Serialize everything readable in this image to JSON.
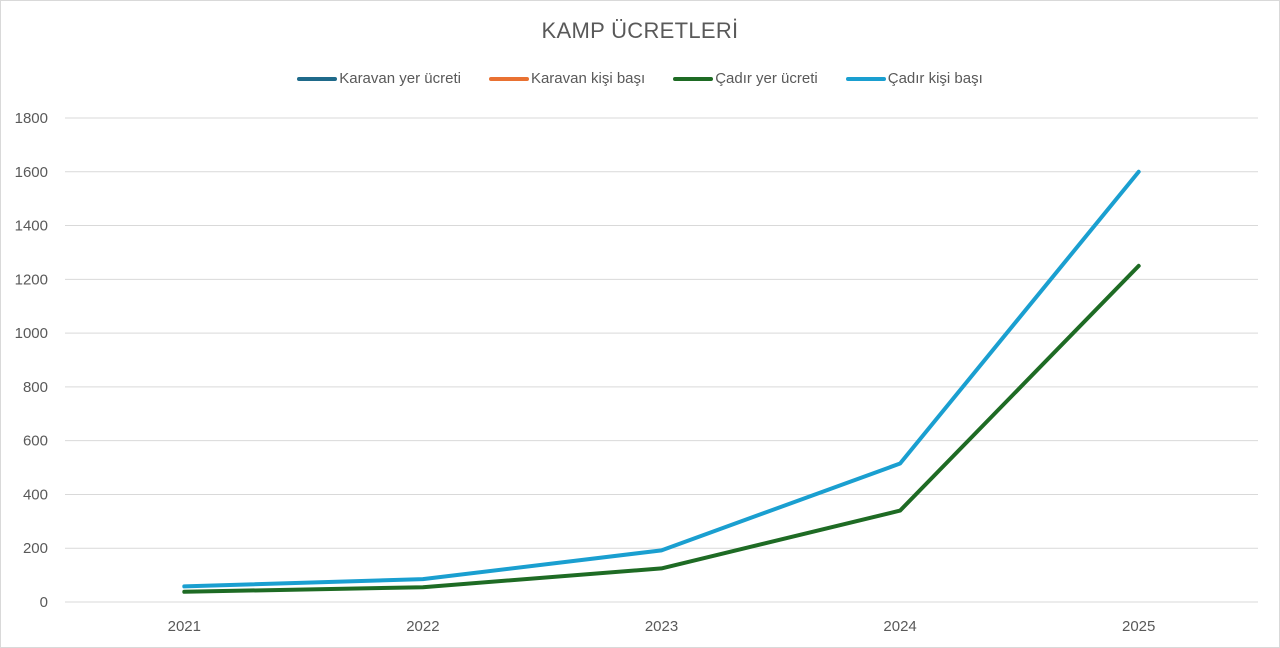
{
  "chart_data": {
    "type": "line",
    "title": "KAMP ÜCRETLERİ",
    "xlabel": "",
    "ylabel": "",
    "categories": [
      "2021",
      "2022",
      "2023",
      "2024",
      "2025"
    ],
    "ylim": [
      0,
      1800
    ],
    "yticks": [
      "0",
      "200",
      "400",
      "600",
      "800",
      "1000",
      "1200",
      "1400",
      "1600",
      "1800"
    ],
    "ytick_values": [
      0,
      200,
      400,
      600,
      800,
      1000,
      1200,
      1400,
      1600,
      1800
    ],
    "grid": true,
    "legend_position": "top",
    "series": [
      {
        "name": "Karavan yer ücreti",
        "color": "#1f6a8a",
        "values": [
          null,
          null,
          null,
          null,
          null
        ]
      },
      {
        "name": "Karavan kişi başı",
        "color": "#e97132",
        "values": [
          null,
          null,
          null,
          null,
          null
        ]
      },
      {
        "name": "Çadır yer ücreti",
        "color": "#1e6b24",
        "values": [
          38,
          55,
          125,
          340,
          1250
        ]
      },
      {
        "name": "Çadır kişi başı",
        "color": "#1a9fd0",
        "values": [
          58,
          85,
          192,
          515,
          1600
        ]
      }
    ]
  }
}
